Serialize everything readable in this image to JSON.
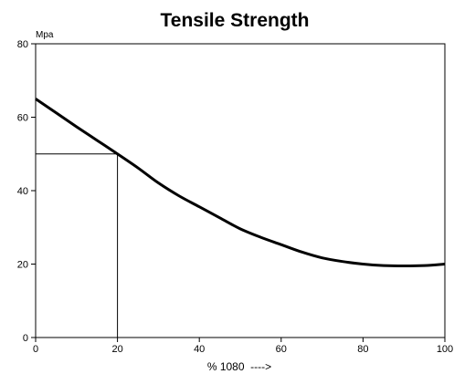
{
  "chart_data": {
    "type": "line",
    "title": "Tensile Strength",
    "ylabel": "Mpa",
    "xlabel": "% 1080  ---->",
    "xlim": [
      0,
      100
    ],
    "ylim": [
      0,
      80
    ],
    "x_ticks": [
      "0",
      "20",
      "40",
      "60",
      "80",
      "100"
    ],
    "y_ticks": [
      "0",
      "20",
      "40",
      "60",
      "80"
    ],
    "grid": false,
    "legend": "none",
    "series": [
      {
        "x": [
          0,
          5,
          10,
          15,
          20,
          25,
          30,
          35,
          40,
          45,
          50,
          55,
          60,
          65,
          70,
          75,
          80,
          85,
          90,
          95,
          100
        ],
        "y": [
          65,
          61.2,
          57.4,
          53.7,
          50,
          46.2,
          42.1,
          38.6,
          35.6,
          32.6,
          29.6,
          27.3,
          25.3,
          23.3,
          21.7,
          20.7,
          20,
          19.6,
          19.5,
          19.6,
          20
        ],
        "color": "#000000"
      }
    ],
    "reference_lines": {
      "x": 20,
      "y": 50
    }
  }
}
